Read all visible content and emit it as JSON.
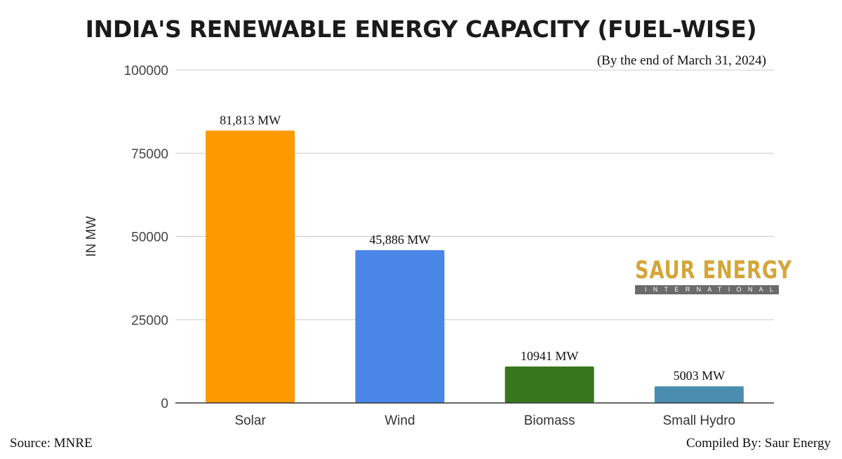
{
  "page": {
    "title": "INDIA'S RENEWABLE ENERGY CAPACITY (FUEL-WISE)",
    "subtitle": "(By the end of March 31, 2024)",
    "source": "Source: MNRE",
    "compiled_by": "Compiled By: Saur Energy"
  },
  "brand": {
    "name": "SAUR ENERGY",
    "tagline": "INTERNATIONAL",
    "color": "#d4a63a"
  },
  "chart_data": {
    "type": "bar",
    "title": "INDIA'S RENEWABLE ENERGY CAPACITY (FUEL-WISE)",
    "xlabel": "",
    "ylabel": "IN MW",
    "ylim": [
      0,
      100000
    ],
    "yticks": [
      0,
      25000,
      50000,
      75000,
      100000
    ],
    "grid": true,
    "categories": [
      "Solar",
      "Wind",
      "Biomass",
      "Small Hydro"
    ],
    "values": [
      81813,
      45886,
      10941,
      5003
    ],
    "data_labels": [
      "81,813 MW",
      "45,886 MW",
      "10941 MW",
      "5003 MW"
    ],
    "colors": [
      "#ff9900",
      "#4a86e8",
      "#38761d",
      "#4a8db0"
    ]
  }
}
